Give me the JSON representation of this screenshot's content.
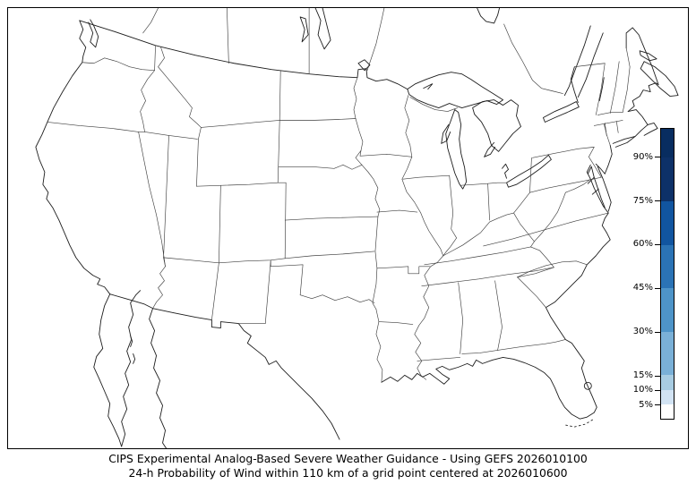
{
  "figure": {
    "kind": "severe-weather-probability-map",
    "background": "#ffffff",
    "region": "Continental United States with southern Canada and northern Mexico",
    "shaded_probability_areas": "none visible (all values below lowest 5% contour)"
  },
  "caption": {
    "line1": "CIPS Experimental Analog-Based Severe Weather Guidance - Using GEFS 2026010100",
    "line2": "24-h Probability of Wind within 110 km of a grid point centered at 2026010600"
  },
  "map_style": {
    "state_border_color": "#3f3f3f",
    "coast_border_color": "#1d1d1d",
    "frame_color": "#000000",
    "land_color": "#ffffff",
    "water_color": "#ffffff"
  },
  "colorbar": {
    "orientation": "vertical",
    "unit": "%",
    "range_min": 0,
    "range_max": 100,
    "ticks": [
      90,
      75,
      60,
      45,
      30,
      15,
      10,
      5
    ],
    "tick_labels": [
      "90%",
      "75%",
      "60%",
      "45%",
      "30%",
      "15%",
      "10%",
      "5%"
    ],
    "segments": [
      {
        "from": 0,
        "to": 5,
        "color": "#ffffff"
      },
      {
        "from": 5,
        "to": 10,
        "color": "#d2e3f3"
      },
      {
        "from": 10,
        "to": 15,
        "color": "#a8cce2"
      },
      {
        "from": 15,
        "to": 30,
        "color": "#7ab0d7"
      },
      {
        "from": 30,
        "to": 45,
        "color": "#4e94c8"
      },
      {
        "from": 45,
        "to": 60,
        "color": "#2b73b5"
      },
      {
        "from": 60,
        "to": 75,
        "color": "#1155a0"
      },
      {
        "from": 75,
        "to": 90,
        "color": "#0d3168"
      },
      {
        "from": 90,
        "to": 100,
        "color": "#082d60"
      }
    ]
  }
}
